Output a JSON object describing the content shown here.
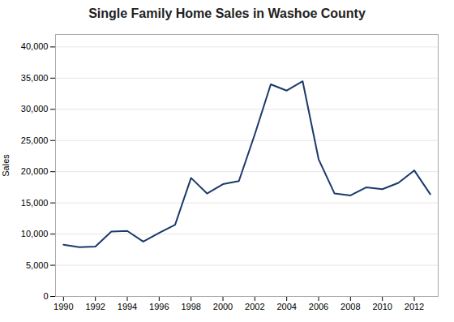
{
  "chart_data": {
    "type": "line",
    "title": "Single Family Home Sales in Washoe County",
    "ylabel": "Sales",
    "x": [
      1990,
      1991,
      1992,
      1993,
      1994,
      1995,
      1996,
      1997,
      1998,
      1999,
      2000,
      2001,
      2002,
      2003,
      2004,
      2005,
      2006,
      2007,
      2008,
      2009,
      2010,
      2011,
      2012,
      2013
    ],
    "values": [
      8300,
      7900,
      8000,
      10400,
      10500,
      8800,
      10200,
      11500,
      19000,
      16500,
      18000,
      18500,
      26000,
      34000,
      33000,
      34500,
      22000,
      16500,
      16200,
      17500,
      17200,
      18200,
      20200,
      16400
    ],
    "color": "#1a3a6b",
    "xlim": [
      1989.5,
      2013.5
    ],
    "xticks": [
      1990,
      1992,
      1994,
      1996,
      1998,
      2000,
      2002,
      2004,
      2006,
      2008,
      2010,
      2012
    ],
    "ylim": [
      0,
      42000
    ],
    "yticks": [
      0,
      {
        "value": 5000,
        "label": "5,000"
      },
      {
        "value": 10000,
        "label": "10,000"
      },
      {
        "value": 15000,
        "label": "15,000"
      },
      {
        "value": 20000,
        "label": "20,000"
      },
      {
        "value": 25000,
        "label": "25,000"
      },
      {
        "value": 30000,
        "label": "30,000"
      },
      {
        "value": 35000,
        "label": "35,000"
      },
      {
        "value": 40000,
        "label": "40,000"
      }
    ],
    "grid": true
  }
}
